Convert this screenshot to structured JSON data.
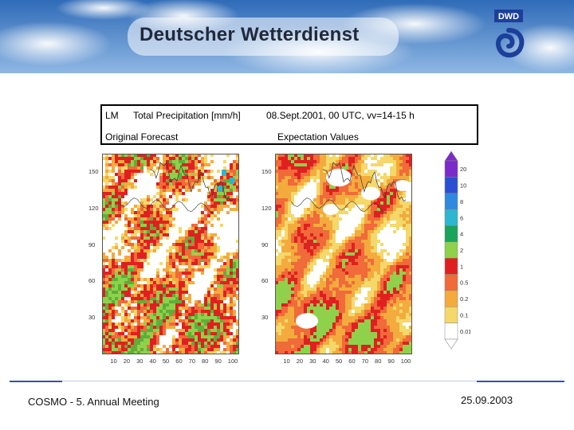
{
  "banner": {
    "title": "Deutscher Wetterdienst",
    "logo_text": "DWD"
  },
  "header": {
    "model": "LM",
    "variable": "Total Precipitation [mm/h]",
    "datetime": "08.Sept.2001, 00 UTC, vv=14-15 h",
    "left_panel_title": "Original Forecast",
    "right_panel_title": "Expectation Values"
  },
  "chart_data": [
    {
      "type": "heatmap",
      "title": "Original Forecast",
      "x_ticks": [
        10,
        20,
        30,
        40,
        50,
        60,
        70,
        80,
        90,
        100
      ],
      "y_ticks": [
        150,
        120,
        90,
        60,
        30
      ],
      "xlim": [
        0,
        105
      ],
      "ylim": [
        0,
        165
      ]
    },
    {
      "type": "heatmap",
      "title": "Expectation Values",
      "x_ticks": [
        10,
        20,
        30,
        40,
        50,
        60,
        70,
        80,
        90,
        100
      ],
      "y_ticks": [
        150,
        120,
        90,
        60,
        30
      ],
      "xlim": [
        0,
        105
      ],
      "ylim": [
        0,
        165
      ]
    }
  ],
  "colorbar": {
    "levels": [
      "20",
      "10",
      "8",
      "6",
      "4",
      "2",
      "1",
      "0.5",
      "0.2",
      "0.1",
      "0.01"
    ],
    "colors": [
      "#7a2bc9",
      "#2b4fd4",
      "#2f89e0",
      "#2cb6cf",
      "#1aa35a",
      "#8fd14a",
      "#e02020",
      "#f06a3a",
      "#f3ab3d",
      "#f5d86a",
      "#ffffff"
    ]
  },
  "footer": {
    "meeting": "COSMO - 5. Annual Meeting",
    "date": "25.09.2003"
  },
  "colors": {
    "accent": "#3a4fa6",
    "sky": "#4f86c8"
  }
}
